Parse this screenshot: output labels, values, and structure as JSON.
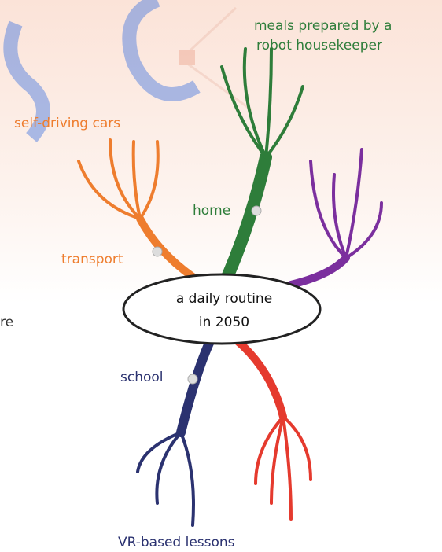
{
  "center": {
    "lines": [
      "a daily routine",
      "in 2050"
    ]
  },
  "branches": [
    {
      "label": "home",
      "leaf": [
        "meals prepared by a",
        "robot housekeeper"
      ]
    },
    {
      "label": "transport",
      "leaf": [
        "self-driving cars"
      ]
    },
    {
      "label": "school",
      "leaf": [
        "VR-based lessons"
      ]
    }
  ],
  "fragment": "re"
}
